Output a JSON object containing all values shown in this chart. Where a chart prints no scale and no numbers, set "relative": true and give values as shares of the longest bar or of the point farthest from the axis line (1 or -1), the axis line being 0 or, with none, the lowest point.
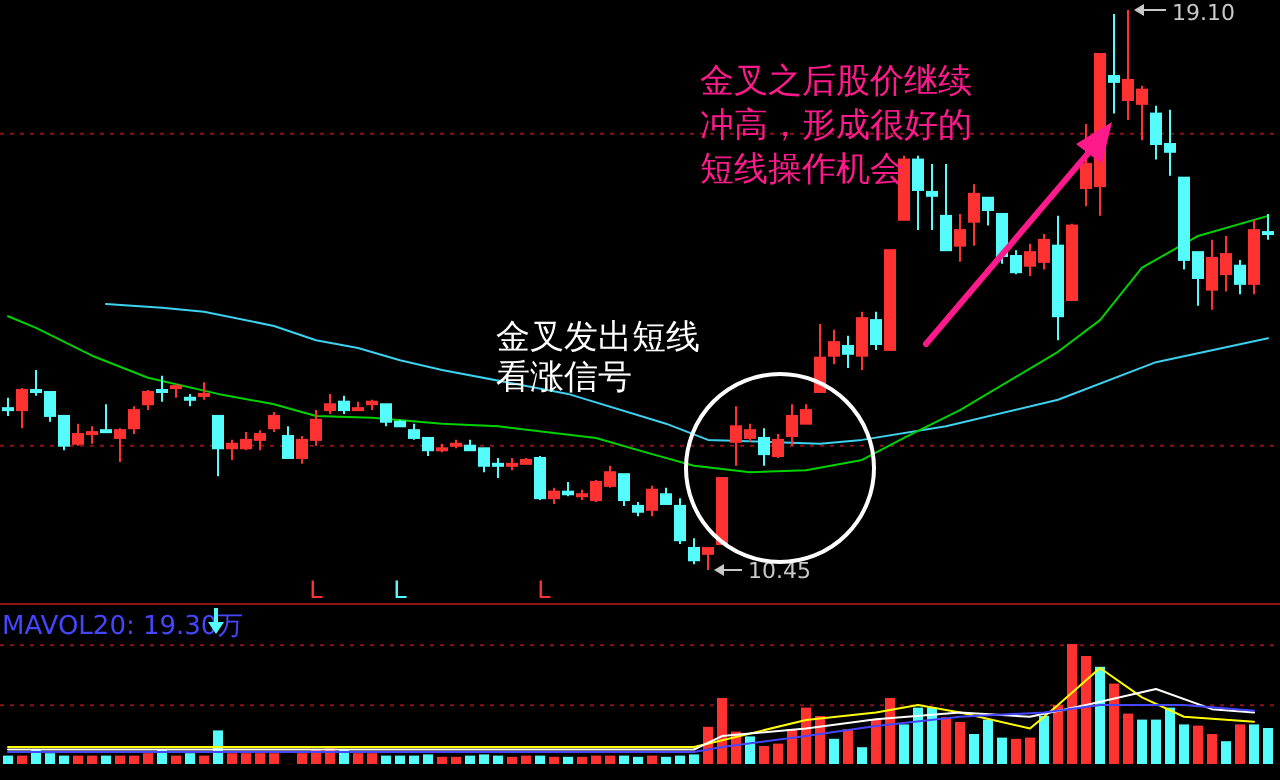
{
  "chart_data": [
    {
      "type": "candlestick",
      "categories": [
        null,
        null,
        null,
        null,
        null,
        null,
        null,
        null,
        null,
        null,
        null,
        null,
        null,
        null,
        null,
        null,
        null,
        null,
        null,
        null,
        null,
        null,
        null,
        null,
        null,
        null,
        null,
        null,
        null,
        null,
        null,
        null,
        null,
        null,
        null,
        null,
        null,
        null,
        null,
        null,
        null,
        null,
        null,
        null,
        null,
        null,
        null,
        null,
        null,
        null,
        null,
        null,
        null,
        null,
        null,
        null,
        null,
        null,
        null,
        null,
        null,
        null,
        null,
        null,
        null,
        null,
        null,
        null,
        null,
        null,
        null,
        null,
        null,
        null,
        null,
        null,
        null,
        null,
        null,
        null,
        null,
        null,
        null,
        null,
        null,
        null,
        null,
        null,
        null,
        null,
        null
      ],
      "ohlc": [
        [
          12.95,
          13.11,
          12.83,
          12.92
        ],
        [
          12.92,
          13.26,
          12.64,
          13.23
        ],
        [
          13.23,
          13.54,
          13.14,
          13.2
        ],
        [
          13.2,
          13.2,
          12.74,
          12.83
        ],
        [
          12.83,
          12.83,
          12.3,
          12.37
        ],
        [
          12.4,
          12.71,
          12.37,
          12.55
        ],
        [
          12.55,
          12.67,
          12.4,
          12.58
        ],
        [
          12.61,
          13.01,
          12.58,
          12.58
        ],
        [
          12.49,
          12.64,
          12.12,
          12.61
        ],
        [
          12.64,
          12.98,
          12.55,
          12.92
        ],
        [
          13.01,
          13.23,
          12.92,
          13.2
        ],
        [
          13.23,
          13.45,
          13.05,
          13.2
        ],
        [
          13.26,
          13.32,
          13.11,
          13.29
        ],
        [
          13.11,
          13.17,
          12.98,
          13.08
        ],
        [
          13.14,
          13.35,
          13.08,
          13.17
        ],
        [
          12.83,
          12.83,
          11.9,
          12.33
        ],
        [
          12.33,
          12.46,
          12.15,
          12.4
        ],
        [
          12.33,
          12.58,
          12.3,
          12.46
        ],
        [
          12.46,
          12.61,
          12.3,
          12.55
        ],
        [
          12.64,
          12.89,
          12.58,
          12.83
        ],
        [
          12.52,
          12.67,
          12.18,
          12.18
        ],
        [
          12.18,
          12.52,
          12.09,
          12.46
        ],
        [
          12.46,
          12.92,
          12.37,
          12.77
        ],
        [
          12.92,
          13.17,
          12.86,
          13.01
        ],
        [
          13.05,
          13.14,
          12.86,
          12.92
        ],
        [
          12.92,
          13.05,
          12.92,
          12.95
        ],
        [
          13.01,
          13.08,
          12.92,
          13.05
        ],
        [
          13.01,
          13.01,
          12.67,
          12.74
        ],
        [
          12.74,
          12.77,
          12.67,
          12.67
        ],
        [
          12.61,
          12.71,
          12.46,
          12.49
        ],
        [
          12.49,
          12.49,
          12.21,
          12.3
        ],
        [
          12.3,
          12.4,
          12.27,
          12.33
        ],
        [
          12.37,
          12.46,
          12.33,
          12.4
        ],
        [
          12.37,
          12.46,
          12.3,
          12.3
        ],
        [
          12.33,
          12.33,
          11.96,
          12.06
        ],
        [
          12.09,
          12.18,
          11.87,
          12.06
        ],
        [
          12.06,
          12.18,
          11.99,
          12.09
        ],
        [
          12.09,
          12.18,
          12.09,
          12.15
        ],
        [
          12.18,
          12.21,
          11.53,
          11.56
        ],
        [
          11.56,
          11.72,
          11.47,
          11.66
        ],
        [
          11.66,
          11.81,
          11.59,
          11.62
        ],
        [
          11.59,
          11.69,
          11.53,
          11.62
        ],
        [
          11.53,
          11.84,
          11.5,
          11.81
        ],
        [
          11.75,
          12.06,
          11.72,
          11.96
        ],
        [
          11.93,
          11.93,
          11.44,
          11.53
        ],
        [
          11.44,
          11.5,
          11.28,
          11.35
        ],
        [
          11.38,
          11.75,
          11.28,
          11.69
        ],
        [
          11.62,
          11.72,
          11.47,
          11.47
        ],
        [
          11.44,
          11.56,
          10.85,
          10.91
        ],
        [
          10.79,
          10.94,
          10.54,
          10.6
        ],
        [
          10.7,
          10.79,
          10.45,
          10.79
        ],
        [
          10.85,
          11.87,
          10.85,
          11.87
        ],
        [
          12.43,
          12.98,
          12.06,
          12.67
        ],
        [
          12.49,
          12.71,
          12.43,
          12.61
        ],
        [
          12.49,
          12.64,
          12.06,
          12.24
        ],
        [
          12.21,
          12.55,
          12.18,
          12.46
        ],
        [
          12.52,
          13.01,
          12.37,
          12.83
        ],
        [
          12.71,
          13.01,
          12.71,
          12.92
        ],
        [
          13.2,
          14.25,
          13.2,
          13.73
        ],
        [
          13.76,
          14.16,
          13.63,
          13.97
        ],
        [
          13.91,
          14.07,
          13.57,
          13.79
        ],
        [
          13.76,
          14.44,
          13.54,
          14.34
        ],
        [
          14.31,
          14.44,
          13.85,
          13.94
        ],
        [
          13.85,
          15.39,
          13.85,
          15.39
        ],
        [
          15.86,
          16.85,
          15.86,
          16.79
        ],
        [
          16.79,
          16.85,
          15.7,
          16.32
        ],
        [
          16.29,
          16.72,
          15.7,
          16.23
        ],
        [
          15.92,
          16.72,
          15.39,
          15.39
        ],
        [
          15.46,
          15.95,
          15.21,
          15.7
        ],
        [
          15.83,
          16.41,
          15.46,
          16.26
        ],
        [
          16.2,
          16.2,
          15.77,
          16.01
        ],
        [
          15.95,
          15.95,
          15.18,
          15.3
        ],
        [
          15.3,
          15.39,
          15.02,
          15.05
        ],
        [
          15.15,
          15.49,
          14.99,
          15.36
        ],
        [
          15.21,
          15.64,
          15.09,
          15.55
        ],
        [
          15.46,
          15.92,
          14.0,
          14.37
        ],
        [
          14.62,
          15.8,
          14.62,
          15.77
        ],
        [
          16.35,
          17.34,
          16.07,
          16.72
        ],
        [
          16.38,
          18.42,
          15.92,
          18.42
        ],
        [
          18.08,
          19.04,
          17.5,
          17.99
        ],
        [
          17.71,
          19.1,
          17.4,
          18.02
        ],
        [
          17.65,
          17.93,
          17.09,
          17.87
        ],
        [
          17.5,
          17.62,
          16.79,
          17.03
        ],
        [
          17.03,
          17.56,
          16.54,
          16.91
        ],
        [
          16.51,
          16.51,
          15.09,
          15.24
        ],
        [
          15.36,
          15.36,
          14.53,
          14.96
        ],
        [
          14.78,
          15.55,
          14.47,
          15.27
        ],
        [
          15.02,
          15.61,
          14.75,
          15.33
        ],
        [
          15.15,
          15.24,
          14.71,
          14.87
        ],
        [
          14.87,
          15.86,
          14.71,
          15.7
        ],
        [
          15.67,
          15.95,
          15.55,
          15.64
        ]
      ],
      "colors": [
        "#54fcfc",
        "#ff3232",
        "#54fcfc",
        "#54fcfc",
        "#54fcfc",
        "#ff3232",
        "#ff3232",
        "#54fcfc",
        "#ff3232",
        "#ff3232",
        "#ff3232",
        "#54fcfc",
        "#ff3232",
        "#54fcfc",
        "#ff3232",
        "#54fcfc",
        "#ff3232",
        "#ff3232",
        "#ff3232",
        "#ff3232",
        "#54fcfc",
        "#ff3232",
        "#ff3232",
        "#ff3232",
        "#54fcfc",
        "#ff3232",
        "#ff3232",
        "#54fcfc",
        "#54fcfc",
        "#54fcfc",
        "#54fcfc",
        "#ff3232",
        "#ff3232",
        "#54fcfc",
        "#54fcfc",
        "#54fcfc",
        "#ff3232",
        "#ff3232",
        "#54fcfc",
        "#ff3232",
        "#54fcfc",
        "#ff3232",
        "#ff3232",
        "#ff3232",
        "#54fcfc",
        "#54fcfc",
        "#ff3232",
        "#54fcfc",
        "#54fcfc",
        "#54fcfc",
        "#ff3232",
        "#ff3232",
        "#ff3232",
        "#ff3232",
        "#54fcfc",
        "#ff3232",
        "#ff3232",
        "#ff3232",
        "#ff3232",
        "#ff3232",
        "#54fcfc",
        "#ff3232",
        "#54fcfc",
        "#ff3232",
        "#ff3232",
        "#54fcfc",
        "#54fcfc",
        "#54fcfc",
        "#ff3232",
        "#ff3232",
        "#54fcfc",
        "#54fcfc",
        "#54fcfc",
        "#ff3232",
        "#ff3232",
        "#54fcfc",
        "#ff3232",
        "#ff3232",
        "#ff3232",
        "#54fcfc",
        "#ff3232",
        "#ff3232",
        "#54fcfc",
        "#54fcfc",
        "#54fcfc",
        "#54fcfc",
        "#ff3232",
        "#ff3232",
        "#54fcfc",
        "#ff3232",
        "#54fcfc"
      ],
      "series": [
        {
          "type": "line",
          "color": "#3cd2f0",
          "values": [
            null,
            null,
            null,
            null,
            null,
            null,
            null,
            14.56,
            null,
            null,
            null,
            14.5,
            null,
            null,
            14.44,
            null,
            null,
            null,
            null,
            14.22,
            null,
            null,
            14.0,
            null,
            null,
            13.88,
            null,
            null,
            13.69,
            null,
            null,
            13.54,
            null,
            null,
            null,
            null,
            null,
            null,
            null,
            null,
            13.17,
            null,
            null,
            null,
            null,
            null,
            null,
            12.71,
            null,
            null,
            12.46,
            null,
            null,
            null,
            null,
            null,
            null,
            null,
            12.4,
            null,
            null,
            12.46,
            null,
            null,
            null,
            null,
            null,
            12.67,
            null,
            null,
            null,
            null,
            null,
            null,
            null,
            13.08,
            null,
            null,
            null,
            null,
            null,
            null,
            13.66,
            null,
            null,
            null,
            null,
            null,
            null,
            null,
            14.03
          ]
        },
        {
          "type": "line",
          "color": "#00d200",
          "values": [
            14.37,
            null,
            14.19,
            null,
            null,
            null,
            13.76,
            null,
            null,
            null,
            13.42,
            null,
            null,
            null,
            null,
            13.17,
            null,
            null,
            null,
            13.01,
            null,
            null,
            12.83,
            null,
            null,
            null,
            12.8,
            null,
            null,
            null,
            null,
            12.71,
            null,
            null,
            null,
            12.67,
            null,
            null,
            null,
            null,
            null,
            null,
            12.49,
            null,
            null,
            null,
            12.24,
            null,
            null,
            12.06,
            null,
            null,
            null,
            11.96,
            null,
            null,
            null,
            11.99,
            null,
            null,
            null,
            12.15,
            null,
            null,
            12.49,
            null,
            null,
            null,
            12.92,
            null,
            null,
            null,
            null,
            null,
            null,
            13.82,
            null,
            null,
            14.31,
            null,
            null,
            15.12,
            null,
            null,
            null,
            15.61,
            null,
            null,
            null,
            null,
            15.92
          ]
        }
      ],
      "ref_lines": [
        {
          "axis": "y",
          "value": 12.37,
          "color": "#8c1414",
          "line_style": "dotted"
        },
        {
          "axis": "y",
          "value": 17.19,
          "color": "#8c1414",
          "line_style": "dotted"
        }
      ],
      "annotations": [
        "金叉之后股价继续冲高，形成很好的短线操作机会",
        "金叉发出短线看涨信号",
        "19.10",
        "10.45",
        "L",
        "L",
        "L"
      ]
    },
    {
      "type": "bar",
      "relative": true,
      "categories": [
        null,
        null,
        null,
        null,
        null,
        null,
        null,
        null,
        null,
        null,
        null,
        null,
        null,
        null,
        null,
        null,
        null,
        null,
        null,
        null,
        null,
        null,
        null,
        null,
        null,
        null,
        null,
        null,
        null,
        null,
        null,
        null,
        null,
        null,
        null,
        null,
        null,
        null,
        null,
        null,
        null,
        null,
        null,
        null,
        null,
        null,
        null,
        null,
        null,
        null,
        null,
        null,
        null,
        null,
        null,
        null,
        null,
        null,
        null,
        null,
        null,
        null,
        null,
        null,
        null,
        null,
        null,
        null,
        null,
        null,
        null,
        null,
        null,
        null,
        null,
        null,
        null,
        null,
        null,
        null,
        null,
        null,
        null,
        null,
        null,
        null,
        null,
        null,
        null,
        null,
        null
      ],
      "values": [
        0.07,
        0.07,
        0.12,
        0.09,
        0.07,
        0.07,
        0.07,
        0.07,
        0.07,
        0.07,
        0.09,
        0.12,
        0.07,
        0.09,
        0.07,
        0.28,
        0.09,
        0.09,
        0.09,
        0.09,
        null,
        0.09,
        0.12,
        0.13,
        0.12,
        0.09,
        0.09,
        0.07,
        0.07,
        0.07,
        0.08,
        0.06,
        0.06,
        0.07,
        0.08,
        0.07,
        0.06,
        0.07,
        0.07,
        0.06,
        0.06,
        0.06,
        0.07,
        0.07,
        0.07,
        0.06,
        0.07,
        0.06,
        0.07,
        0.08,
        0.31,
        0.55,
        0.27,
        0.23,
        0.15,
        0.17,
        0.29,
        0.47,
        0.4,
        0.21,
        0.29,
        0.14,
        0.37,
        0.55,
        0.33,
        0.47,
        0.47,
        0.39,
        0.35,
        0.25,
        0.37,
        0.22,
        0.21,
        0.22,
        0.4,
        0.49,
        1.0,
        0.9,
        0.81,
        0.67,
        0.42,
        0.37,
        0.37,
        0.47,
        0.33,
        0.32,
        0.25,
        0.19,
        0.33,
        0.33,
        0.3
      ],
      "colors": [
        "#54fcfc",
        "#ff3232",
        "#54fcfc",
        "#54fcfc",
        "#54fcfc",
        "#ff3232",
        "#ff3232",
        "#54fcfc",
        "#ff3232",
        "#ff3232",
        "#ff3232",
        "#54fcfc",
        "#ff3232",
        "#54fcfc",
        "#ff3232",
        "#54fcfc",
        "#ff3232",
        "#ff3232",
        "#ff3232",
        "#ff3232",
        null,
        "#ff3232",
        "#ff3232",
        "#ff3232",
        "#54fcfc",
        "#ff3232",
        "#ff3232",
        "#54fcfc",
        "#54fcfc",
        "#54fcfc",
        "#54fcfc",
        "#ff3232",
        "#ff3232",
        "#54fcfc",
        "#54fcfc",
        "#54fcfc",
        "#ff3232",
        "#ff3232",
        "#54fcfc",
        "#ff3232",
        "#54fcfc",
        "#ff3232",
        "#ff3232",
        "#ff3232",
        "#54fcfc",
        "#54fcfc",
        "#ff3232",
        "#54fcfc",
        "#54fcfc",
        "#54fcfc",
        "#ff3232",
        "#ff3232",
        "#ff3232",
        "#54fcfc",
        "#ff3232",
        "#ff3232",
        "#ff3232",
        "#ff3232",
        "#ff3232",
        "#54fcfc",
        "#ff3232",
        "#54fcfc",
        "#ff3232",
        "#ff3232",
        "#54fcfc",
        "#54fcfc",
        "#54fcfc",
        "#ff3232",
        "#ff3232",
        "#54fcfc",
        "#54fcfc",
        "#54fcfc",
        "#ff3232",
        "#ff3232",
        "#54fcfc",
        "#ff3232",
        "#ff3232",
        "#ff3232",
        "#54fcfc",
        "#ff3232",
        "#ff3232",
        "#54fcfc",
        "#54fcfc",
        "#54fcfc",
        "#54fcfc",
        "#ff3232",
        "#ff3232",
        "#54fcfc",
        "#ff3232",
        "#54fcfc",
        "#54fcfc"
      ],
      "ref_lines": [
        {
          "axis": "y",
          "value": 0.99,
          "color": "#8c1414",
          "line_style": "dotted"
        },
        {
          "axis": "y",
          "value": 0.49,
          "color": "#8c1414",
          "line_style": "dotted"
        }
      ],
      "annotations": [
        "MAVOL20: 19.30万"
      ]
    },
    {
      "type": "line",
      "relative": true,
      "categories": [
        null,
        null,
        null,
        null,
        null,
        null,
        null,
        null,
        null,
        null,
        null,
        null,
        null,
        null,
        null,
        null,
        null,
        null,
        null,
        null,
        null,
        null,
        null,
        null,
        null,
        null,
        null,
        null,
        null,
        null,
        null,
        null,
        null,
        null,
        null,
        null,
        null,
        null,
        null,
        null,
        null,
        null,
        null,
        null,
        null,
        null,
        null,
        null,
        null,
        null,
        null,
        null,
        null,
        null,
        null,
        null,
        null,
        null,
        null,
        null,
        null,
        null,
        null,
        null,
        null,
        null,
        null,
        null,
        null,
        null,
        null,
        null,
        null,
        null,
        null,
        null,
        null,
        null,
        null,
        null,
        null,
        null,
        null,
        null,
        null,
        null,
        null,
        null,
        null,
        null,
        null
      ],
      "series": [
        {
          "type": "line",
          "color": "#ffff00",
          "values": [
            0.06,
            null,
            null,
            null,
            null,
            null,
            null,
            null,
            null,
            null,
            null,
            null,
            null,
            null,
            null,
            null,
            null,
            null,
            null,
            null,
            null,
            null,
            null,
            null,
            null,
            null,
            null,
            null,
            null,
            null,
            null,
            null,
            null,
            null,
            null,
            null,
            null,
            null,
            null,
            null,
            null,
            null,
            null,
            null,
            null,
            null,
            null,
            null,
            null,
            0.06,
            null,
            null,
            null,
            null,
            null,
            null,
            null,
            0.38,
            null,
            null,
            null,
            null,
            0.47,
            null,
            null,
            0.56,
            null,
            null,
            0.47,
            null,
            null,
            null,
            null,
            0.28,
            null,
            0.56,
            null,
            null,
            1.0,
            null,
            null,
            0.65,
            null,
            null,
            0.42,
            null,
            null,
            null,
            null,
            0.36,
            null
          ]
        },
        {
          "type": "line",
          "color": "#ffffff",
          "values": [
            0.03,
            null,
            null,
            null,
            null,
            null,
            null,
            null,
            null,
            null,
            null,
            null,
            null,
            null,
            null,
            null,
            null,
            null,
            null,
            null,
            null,
            null,
            null,
            null,
            null,
            null,
            null,
            null,
            null,
            null,
            null,
            null,
            null,
            null,
            null,
            null,
            null,
            null,
            null,
            null,
            null,
            null,
            null,
            null,
            null,
            null,
            null,
            null,
            null,
            0.03,
            null,
            0.19,
            null,
            null,
            null,
            null,
            null,
            0.28,
            null,
            null,
            null,
            null,
            0.39,
            null,
            null,
            null,
            null,
            null,
            0.47,
            null,
            null,
            null,
            null,
            0.42,
            null,
            null,
            null,
            0.56,
            null,
            null,
            null,
            null,
            0.75,
            null,
            null,
            null,
            0.51,
            null,
            null,
            0.47,
            null
          ]
        },
        {
          "type": "line",
          "color": "#4646ff",
          "values": [
            0.0,
            null,
            null,
            null,
            null,
            null,
            null,
            null,
            null,
            null,
            null,
            null,
            null,
            null,
            null,
            null,
            null,
            null,
            null,
            null,
            null,
            null,
            null,
            null,
            null,
            null,
            null,
            null,
            null,
            null,
            null,
            null,
            null,
            null,
            null,
            null,
            null,
            null,
            null,
            null,
            null,
            null,
            null,
            null,
            null,
            null,
            null,
            null,
            null,
            0.0,
            null,
            0.06,
            null,
            null,
            null,
            null,
            null,
            0.19,
            null,
            null,
            null,
            null,
            0.31,
            null,
            null,
            null,
            null,
            null,
            0.42,
            null,
            null,
            null,
            null,
            null,
            0.47,
            null,
            null,
            null,
            0.56,
            null,
            null,
            null,
            null,
            null,
            0.56,
            null,
            null,
            null,
            null,
            0.49,
            null
          ]
        }
      ]
    }
  ]
}
